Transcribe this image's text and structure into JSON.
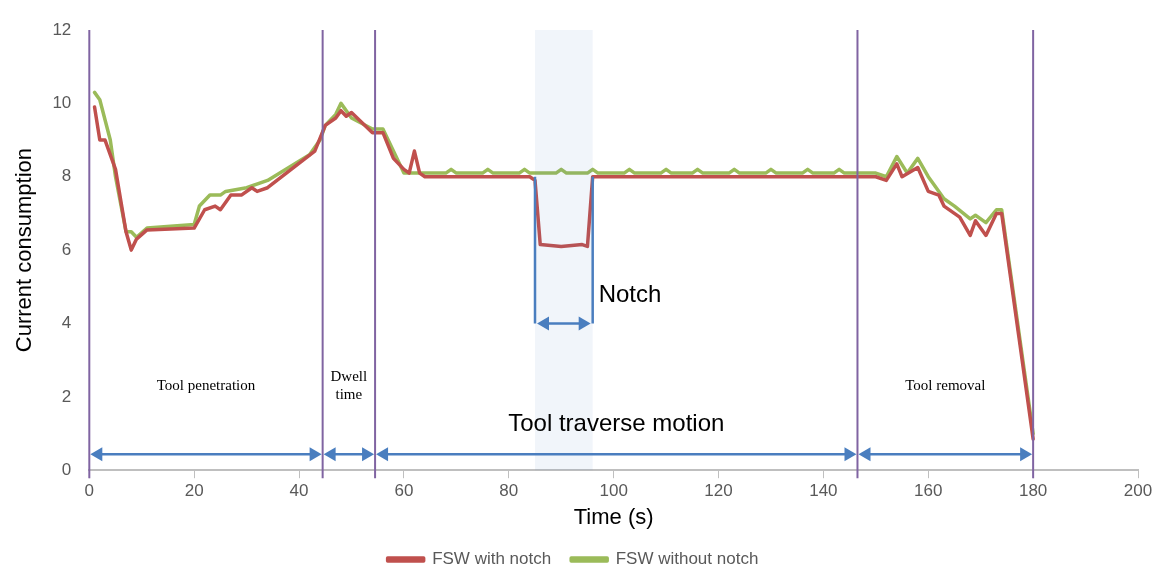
{
  "chart_data": {
    "type": "line",
    "xlabel": "Time (s)",
    "ylabel": "Current consumption",
    "xlim": [
      0,
      200
    ],
    "xticks": [
      0,
      20,
      40,
      60,
      80,
      100,
      120,
      140,
      160,
      180,
      200
    ],
    "ylim": [
      0,
      12
    ],
    "yticks": [
      0,
      2,
      4,
      6,
      8,
      10,
      12
    ],
    "grid": false,
    "legend": "bottom",
    "marker": "none",
    "line_style": "solid",
    "series": [
      {
        "name": "FSW with notch",
        "color": "#c0504d",
        "x": [
          1,
          2,
          3,
          5,
          7,
          8,
          9,
          11,
          20,
          22,
          24,
          25,
          27,
          29,
          31,
          32,
          34,
          43,
          45,
          47,
          48,
          49,
          50,
          54,
          56,
          58,
          60,
          61,
          62,
          63,
          64,
          84,
          85,
          86,
          90,
          94,
          95,
          96,
          97,
          150,
          152,
          154,
          155,
          158,
          160,
          162,
          163,
          166,
          168,
          169,
          171,
          173,
          174,
          180
        ],
        "values": [
          9.9,
          9.0,
          9.0,
          8.2,
          6.5,
          6.0,
          6.3,
          6.55,
          6.6,
          7.1,
          7.2,
          7.1,
          7.5,
          7.5,
          7.7,
          7.6,
          7.7,
          8.7,
          9.4,
          9.6,
          9.8,
          9.65,
          9.75,
          9.2,
          9.2,
          8.5,
          8.2,
          8.1,
          8.7,
          8.1,
          8.0,
          8.0,
          7.9,
          6.15,
          6.1,
          6.15,
          6.1,
          8.0,
          8.0,
          8.0,
          7.9,
          8.35,
          8.0,
          8.25,
          7.6,
          7.5,
          7.2,
          6.9,
          6.4,
          6.8,
          6.4,
          7.0,
          7.0,
          0.85
        ]
      },
      {
        "name": "FSW without notch",
        "color": "#9bbb59",
        "x": [
          1,
          2,
          4,
          5,
          7,
          8,
          9,
          11,
          20,
          21,
          23,
          25,
          26,
          30,
          34,
          42,
          44,
          45,
          47,
          48,
          50,
          54,
          56,
          58,
          60,
          62,
          68,
          69,
          70,
          75,
          76,
          77,
          82,
          83,
          84,
          89,
          90,
          91,
          95,
          96,
          97,
          102,
          103,
          104,
          109,
          110,
          111,
          115,
          116,
          117,
          122,
          123,
          124,
          129,
          130,
          131,
          136,
          137,
          138,
          142,
          143,
          144,
          150,
          152,
          154,
          156,
          158,
          160,
          161,
          163,
          165,
          168,
          169,
          171,
          173,
          174,
          180
        ],
        "values": [
          10.3,
          10.1,
          9.0,
          8.0,
          6.5,
          6.5,
          6.35,
          6.6,
          6.7,
          7.2,
          7.5,
          7.5,
          7.6,
          7.7,
          7.9,
          8.6,
          9.0,
          9.4,
          9.7,
          10.0,
          9.6,
          9.3,
          9.3,
          8.7,
          8.1,
          8.1,
          8.1,
          8.2,
          8.1,
          8.1,
          8.2,
          8.1,
          8.1,
          8.2,
          8.1,
          8.1,
          8.2,
          8.1,
          8.1,
          8.2,
          8.1,
          8.1,
          8.2,
          8.1,
          8.1,
          8.2,
          8.1,
          8.1,
          8.2,
          8.1,
          8.1,
          8.2,
          8.1,
          8.1,
          8.2,
          8.1,
          8.1,
          8.2,
          8.1,
          8.1,
          8.2,
          8.1,
          8.1,
          8.0,
          8.55,
          8.1,
          8.5,
          8.0,
          7.8,
          7.4,
          7.2,
          6.85,
          6.95,
          6.75,
          7.1,
          7.1,
          1.0
        ]
      }
    ],
    "ref_lines": [
      {
        "axis": "x",
        "value": 0,
        "color": "#8064a2"
      },
      {
        "axis": "x",
        "value": 44.5,
        "color": "#8064a2"
      },
      {
        "axis": "x",
        "value": 54.5,
        "color": "#8064a2"
      },
      {
        "axis": "x",
        "value": 146.5,
        "color": "#8064a2"
      },
      {
        "axis": "x",
        "value": 180,
        "color": "#8064a2"
      }
    ],
    "bands": [
      {
        "axis": "x",
        "from": 85,
        "to": 96,
        "label": "Notch",
        "color": "#4a7ebf"
      }
    ],
    "annotations": [
      "Tool penetration",
      "Dwell time",
      "Tool traverse motion",
      "Tool removal"
    ]
  }
}
